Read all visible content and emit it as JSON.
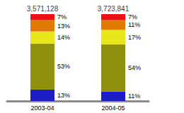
{
  "chart_data": {
    "type": "bar",
    "stacked": true,
    "data_labels": true,
    "tick_labels": "x",
    "grid": false,
    "categories": [
      "2003-04",
      "2004-05"
    ],
    "totals": [
      3571128,
      3723841
    ],
    "ylim": [
      0,
      100
    ],
    "series": [
      {
        "color": "#1c1cc8",
        "values": [
          13,
          11
        ],
        "value_labels": [
          "13%",
          "11%"
        ]
      },
      {
        "color": "#8f8f10",
        "values": [
          53,
          54
        ],
        "value_labels": [
          "53%",
          "54%"
        ]
      },
      {
        "color": "#e6e619",
        "values": [
          14,
          17
        ],
        "value_labels": [
          "14%",
          "17%"
        ]
      },
      {
        "color": "#e07a00",
        "values": [
          13,
          11
        ],
        "value_labels": [
          "13%",
          "11%"
        ]
      },
      {
        "color": "#ee1010",
        "values": [
          7,
          7
        ],
        "value_labels": [
          "7%",
          "7%"
        ]
      }
    ]
  }
}
